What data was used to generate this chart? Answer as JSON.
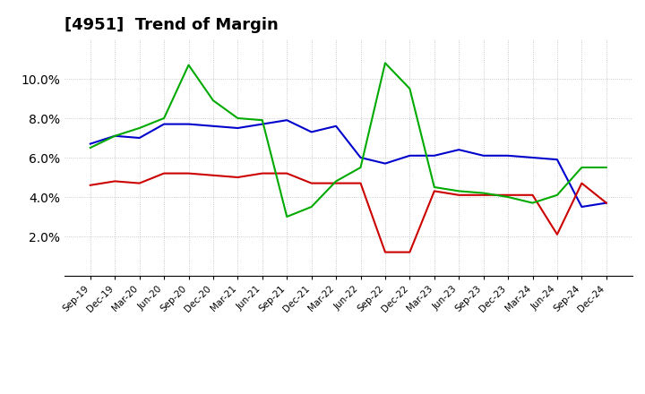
{
  "title": "[4951]  Trend of Margin",
  "x_labels": [
    "Sep-19",
    "Dec-19",
    "Mar-20",
    "Jun-20",
    "Sep-20",
    "Dec-20",
    "Mar-21",
    "Jun-21",
    "Sep-21",
    "Dec-21",
    "Mar-22",
    "Jun-22",
    "Sep-22",
    "Dec-22",
    "Mar-23",
    "Jun-23",
    "Sep-23",
    "Dec-23",
    "Mar-24",
    "Jun-24",
    "Sep-24",
    "Dec-24"
  ],
  "ordinary_income": [
    6.7,
    7.1,
    7.0,
    7.7,
    7.7,
    7.6,
    7.5,
    7.7,
    7.9,
    7.3,
    7.6,
    6.0,
    5.7,
    6.1,
    6.1,
    6.4,
    6.1,
    6.1,
    6.0,
    5.9,
    3.5,
    3.7
  ],
  "net_income": [
    4.6,
    4.8,
    4.7,
    5.2,
    5.2,
    5.1,
    5.0,
    5.2,
    5.2,
    4.7,
    4.7,
    4.7,
    1.2,
    1.2,
    4.3,
    4.1,
    4.1,
    4.1,
    4.1,
    2.1,
    4.7,
    3.7
  ],
  "operating_cashflow": [
    6.5,
    7.1,
    7.5,
    8.0,
    10.7,
    8.9,
    8.0,
    7.9,
    3.0,
    3.5,
    4.8,
    5.5,
    10.8,
    9.5,
    4.5,
    4.3,
    4.2,
    4.0,
    3.7,
    4.1,
    5.5,
    5.5
  ],
  "ordinary_income_color": "#0000cc",
  "net_income_color": "#cc0000",
  "operating_cashflow_color": "#00aa00",
  "ylim": [
    0,
    12
  ],
  "yticks": [
    2.0,
    4.0,
    6.0,
    8.0,
    10.0
  ],
  "background_color": "#ffffff",
  "grid_color": "#aaaaaa",
  "title_fontsize": 13
}
